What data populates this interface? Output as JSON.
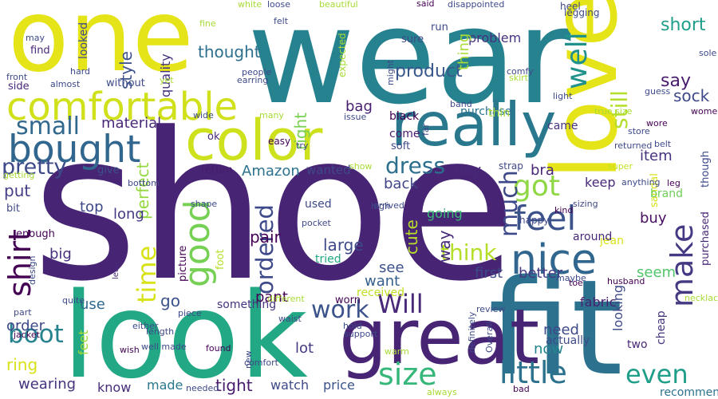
{
  "words": [
    {
      "text": "shoe",
      "color": "#482475"
    },
    {
      "text": "wear",
      "color": "#26828e"
    },
    {
      "text": "one",
      "color": "#e5e419"
    },
    {
      "text": "fit",
      "color": "#2c728e"
    },
    {
      "text": "look",
      "color": "#22a884"
    },
    {
      "text": "love",
      "color": "#e5e419"
    },
    {
      "text": "great",
      "color": "#482475"
    },
    {
      "text": "really",
      "color": "#2a788e"
    },
    {
      "text": "color",
      "color": "#cde11d"
    },
    {
      "text": "comfortable",
      "color": "#d0e11c"
    },
    {
      "text": "bought",
      "color": "#31668e"
    },
    {
      "text": "nice",
      "color": "#31668e"
    },
    {
      "text": "feel",
      "color": "#3b528b"
    },
    {
      "text": "good",
      "color": "#75d054"
    },
    {
      "text": "size",
      "color": "#35b779"
    },
    {
      "text": "little",
      "color": "#2c728e"
    },
    {
      "text": "make",
      "color": "#443983"
    },
    {
      "text": "Will",
      "color": "#482878"
    },
    {
      "text": "shirt",
      "color": "#440154"
    },
    {
      "text": "time",
      "color": "#d8e219"
    },
    {
      "text": "got",
      "color": "#8fd744"
    },
    {
      "text": "much",
      "color": "#3e4989"
    },
    {
      "text": "well",
      "color": "#21918c"
    },
    {
      "text": "even",
      "color": "#1f9e89"
    },
    {
      "text": "small",
      "color": "#31688e"
    },
    {
      "text": "dress",
      "color": "#2d708e"
    },
    {
      "text": "work",
      "color": "#3b528b"
    },
    {
      "text": "boot",
      "color": "#26828e"
    },
    {
      "text": "think",
      "color": "#b5de2b"
    },
    {
      "text": "pretty",
      "color": "#3e4989"
    },
    {
      "text": "ordered",
      "color": "#3e4989"
    },
    {
      "text": "still",
      "color": "#b5de2b"
    },
    {
      "text": "say",
      "color": "#481b6d"
    },
    {
      "text": "short",
      "color": "#1f9e89"
    },
    {
      "text": "product",
      "color": "#38588c"
    },
    {
      "text": "style",
      "color": "#3b528b"
    },
    {
      "text": "thought",
      "color": "#2d708e"
    },
    {
      "text": "sock",
      "color": "#3e4989"
    },
    {
      "text": "material",
      "color": "#482878"
    },
    {
      "text": "perfect",
      "color": "#95d840"
    },
    {
      "text": "Amazon",
      "color": "#2c728e"
    },
    {
      "text": "bag",
      "color": "#481f70"
    },
    {
      "text": "long",
      "color": "#443983"
    },
    {
      "text": "pair",
      "color": "#440154"
    },
    {
      "text": "cute",
      "color": "#b5de2b"
    },
    {
      "text": "see",
      "color": "#3b528b"
    },
    {
      "text": "large",
      "color": "#3e4989"
    },
    {
      "text": "big",
      "color": "#472f7d"
    },
    {
      "text": "want",
      "color": "#355f8d"
    },
    {
      "text": "way",
      "color": "#472c7a"
    },
    {
      "text": "pant",
      "color": "#440154"
    },
    {
      "text": "problem",
      "color": "#46327e"
    },
    {
      "text": "quality",
      "color": "#46327e"
    },
    {
      "text": "right",
      "color": "#7ad151"
    },
    {
      "text": "thing",
      "color": "#a8db34"
    },
    {
      "text": "put",
      "color": "#433e85"
    },
    {
      "text": "top",
      "color": "#3e4989"
    },
    {
      "text": "back",
      "color": "#404688"
    },
    {
      "text": "day",
      "color": "#482878"
    },
    {
      "text": "bra",
      "color": "#482878"
    },
    {
      "text": "keep",
      "color": "#482878"
    },
    {
      "text": "item",
      "color": "#46327e"
    },
    {
      "text": "fabric",
      "color": "#481f70"
    },
    {
      "text": "buy",
      "color": "#470e61"
    },
    {
      "text": "first",
      "color": "#3e4989"
    },
    {
      "text": "better",
      "color": "#443983"
    },
    {
      "text": "seem",
      "color": "#52c569"
    },
    {
      "text": "need",
      "color": "#3e4989"
    },
    {
      "text": "now",
      "color": "#25848e"
    },
    {
      "text": "looking",
      "color": "#3e4989"
    },
    {
      "text": "going",
      "color": "#3aba76"
    },
    {
      "text": "order",
      "color": "#3e4989"
    },
    {
      "text": "use",
      "color": "#31688e"
    },
    {
      "text": "go",
      "color": "#3b528b"
    },
    {
      "text": "made",
      "color": "#2a788e"
    },
    {
      "text": "tight",
      "color": "#481b6d"
    },
    {
      "text": "watch",
      "color": "#3e4989"
    },
    {
      "text": "price",
      "color": "#3b528b"
    },
    {
      "text": "know",
      "color": "#472c7a"
    },
    {
      "text": "wearing",
      "color": "#46327e"
    },
    {
      "text": "lot",
      "color": "#443983"
    },
    {
      "text": "ring",
      "color": "#d8e219"
    },
    {
      "text": "feet",
      "color": "#a2da37"
    },
    {
      "text": "recommend",
      "color": "#2c728e"
    },
    {
      "text": "actually",
      "color": "#3e4989"
    },
    {
      "text": "cheap",
      "color": "#46327e"
    },
    {
      "text": "two",
      "color": "#482878"
    },
    {
      "text": "sandal",
      "color": "#d5e21a"
    },
    {
      "text": "jean",
      "color": "#d8e219"
    },
    {
      "text": "around",
      "color": "#482878"
    },
    {
      "text": "brand",
      "color": "#6ece58"
    },
    {
      "text": "purchased",
      "color": "#482878"
    },
    {
      "text": "though",
      "color": "#3e4989"
    },
    {
      "text": "used",
      "color": "#3e4989"
    },
    {
      "text": "come",
      "color": "#481b6d"
    },
    {
      "text": "soft",
      "color": "#3e4989"
    },
    {
      "text": "black",
      "color": "#440154"
    },
    {
      "text": "came",
      "color": "#46327e"
    },
    {
      "text": "purchase",
      "color": "#2c728e"
    },
    {
      "text": "side",
      "color": "#482878"
    },
    {
      "text": "find",
      "color": "#482878"
    },
    {
      "text": "looked",
      "color": "#3e4989"
    },
    {
      "text": "wanted",
      "color": "#3e4989"
    },
    {
      "text": "return",
      "color": "#481b6d"
    },
    {
      "text": "give",
      "color": "#3b528b"
    },
    {
      "text": "received",
      "color": "#c2df23"
    },
    {
      "text": "worn",
      "color": "#440154"
    },
    {
      "text": "tried",
      "color": "#22a884"
    },
    {
      "text": "something",
      "color": "#46327e"
    },
    {
      "text": "picture",
      "color": "#440154"
    },
    {
      "text": "foot",
      "color": "#b5de2b"
    },
    {
      "text": "enough",
      "color": "#440154"
    },
    {
      "text": "bit",
      "color": "#3e4989"
    },
    {
      "text": "leather",
      "color": "#482878"
    },
    {
      "text": "thin",
      "color": "#a8db34"
    },
    {
      "text": "run",
      "color": "#3e4989"
    },
    {
      "text": "heel",
      "color": "#3e4989"
    },
    {
      "text": "legging",
      "color": "#3e4989"
    },
    {
      "text": "sure",
      "color": "#3e4989"
    },
    {
      "text": "expected",
      "color": "#a8db34"
    },
    {
      "text": "without",
      "color": "#3e4989"
    },
    {
      "text": "easy",
      "color": "#440154"
    },
    {
      "text": "ok",
      "color": "#482878"
    },
    {
      "text": "strap",
      "color": "#3e4989"
    },
    {
      "text": "happy",
      "color": "#3e4989"
    },
    {
      "text": "true size",
      "color": "#a8db34"
    },
    {
      "text": "guess",
      "color": "#3e4989"
    },
    {
      "text": "wore",
      "color": "#440154"
    },
    {
      "text": "store",
      "color": "#3e4989"
    },
    {
      "text": "belt",
      "color": "#3e4989"
    },
    {
      "text": "super",
      "color": "#c2df23"
    },
    {
      "text": "leg",
      "color": "#440154"
    },
    {
      "text": "anything",
      "color": "#3e4989"
    },
    {
      "text": "sizing",
      "color": "#3e4989"
    },
    {
      "text": "kind",
      "color": "#440154"
    },
    {
      "text": "toe",
      "color": "#440154"
    },
    {
      "text": "maybe",
      "color": "#3e4989"
    },
    {
      "text": "husband",
      "color": "#440154"
    },
    {
      "text": "necklace",
      "color": "#a8db34"
    },
    {
      "text": "review",
      "color": "#3e4989"
    },
    {
      "text": "hold",
      "color": "#3e4989"
    },
    {
      "text": "support",
      "color": "#3e4989"
    },
    {
      "text": "waist",
      "color": "#3e4989"
    },
    {
      "text": "piece",
      "color": "#3e4989"
    },
    {
      "text": "found",
      "color": "#440154"
    },
    {
      "text": "comfort",
      "color": "#3e4989"
    },
    {
      "text": "new",
      "color": "#3e4989"
    },
    {
      "text": "warm",
      "color": "#a8db34"
    },
    {
      "text": "bad",
      "color": "#440154"
    },
    {
      "text": "Overall",
      "color": "#3e4989"
    },
    {
      "text": "definitely",
      "color": "#3e4989"
    },
    {
      "text": "always",
      "color": "#a8db34"
    },
    {
      "text": "different",
      "color": "#a8db34"
    },
    {
      "text": "well made",
      "color": "#3e4989"
    },
    {
      "text": "wish",
      "color": "#440154"
    },
    {
      "text": "jacket",
      "color": "#440154"
    },
    {
      "text": "needed",
      "color": "#3e4989"
    },
    {
      "text": "length",
      "color": "#3e4989"
    },
    {
      "text": "either",
      "color": "#3e4989"
    },
    {
      "text": "part",
      "color": "#3e4989"
    },
    {
      "text": "quite",
      "color": "#3e4989"
    },
    {
      "text": "design",
      "color": "#3e4989"
    },
    {
      "text": "front",
      "color": "#3e4989"
    },
    {
      "text": "may",
      "color": "#3e4989"
    },
    {
      "text": "almost",
      "color": "#3e4989"
    },
    {
      "text": "hard",
      "color": "#3e4989"
    },
    {
      "text": "yet",
      "color": "#a8db34"
    },
    {
      "text": "earring",
      "color": "#3e4989"
    },
    {
      "text": "people",
      "color": "#3e4989"
    },
    {
      "text": "felt",
      "color": "#3e4989"
    },
    {
      "text": "fine",
      "color": "#a8db34"
    },
    {
      "text": "white",
      "color": "#a8db34"
    },
    {
      "text": "loose",
      "color": "#3e4989"
    },
    {
      "text": "beautiful",
      "color": "#a8db34"
    },
    {
      "text": "said",
      "color": "#440154"
    },
    {
      "text": "disappointed",
      "color": "#3e4989"
    },
    {
      "text": "comfy",
      "color": "#3e4989"
    },
    {
      "text": "skirt",
      "color": "#a8db34"
    },
    {
      "text": "light",
      "color": "#3e4989"
    },
    {
      "text": "band",
      "color": "#3e4989"
    },
    {
      "text": "might",
      "color": "#3e4989"
    },
    {
      "text": "issue",
      "color": "#3e4989"
    },
    {
      "text": "many",
      "color": "#a8db34"
    },
    {
      "text": "wide",
      "color": "#3e4989"
    },
    {
      "text": "women",
      "color": "#440154"
    },
    {
      "text": "returned",
      "color": "#3e4989"
    },
    {
      "text": "sole",
      "color": "#3e4989"
    },
    {
      "text": "far",
      "color": "#3e4989"
    },
    {
      "text": "try",
      "color": "#3e4989"
    },
    {
      "text": "show",
      "color": "#a8db34"
    },
    {
      "text": "high",
      "color": "#3e4989"
    },
    {
      "text": "arrived",
      "color": "#3e4989"
    },
    {
      "text": "pocket",
      "color": "#3e4989"
    },
    {
      "text": "shape",
      "color": "#3e4989"
    },
    {
      "text": "bottom",
      "color": "#3e4989"
    },
    {
      "text": "getting",
      "color": "#a8db34"
    },
    {
      "text": "cut",
      "color": "#3e4989"
    },
    {
      "text": "probably",
      "color": "#a8db34"
    }
  ]
}
